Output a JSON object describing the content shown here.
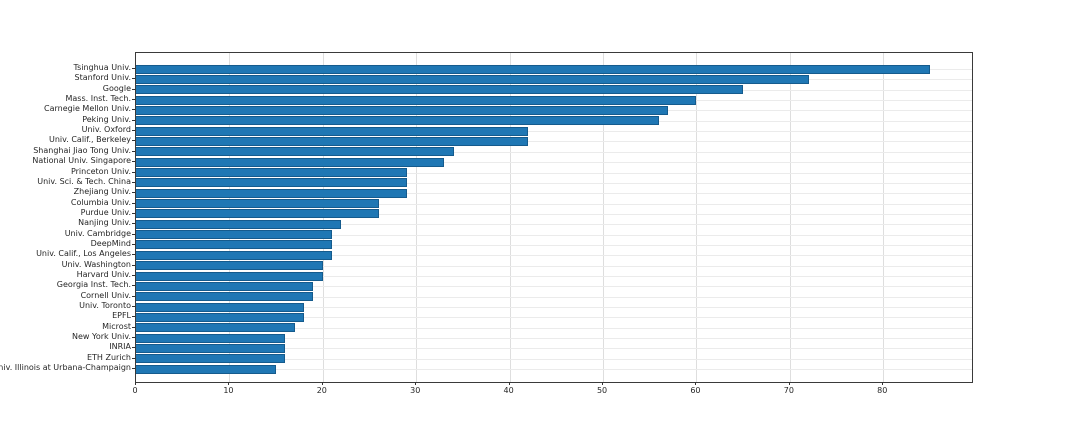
{
  "chart_data": {
    "type": "bar",
    "orientation": "horizontal",
    "title": "",
    "xlabel": "",
    "ylabel": "",
    "categories": [
      "Tsinghua Univ.",
      "Stanford Univ.",
      "Google",
      "Mass. Inst. Tech.",
      "Carnegie Mellon Univ.",
      "Peking Univ.",
      "Univ. Oxford",
      "Univ. Calif., Berkeley",
      "Shanghai Jiao Tong Univ.",
      "National Univ. Singapore",
      "Princeton Univ.",
      "Univ. Sci. & Tech. China",
      "Zhejiang Univ.",
      "Columbia Univ.",
      "Purdue Univ.",
      "Nanjing Univ.",
      "Univ. Cambridge",
      "DeepMind",
      "Univ. Calif., Los Angeles",
      "Univ. Washington",
      "Harvard Univ.",
      "Georgia Inst. Tech.",
      "Cornell Univ.",
      "Univ. Toronto",
      "EPFL",
      "Microst",
      "New York Univ.",
      "INRIA",
      "ETH Zurich",
      "Univ. Illinois at Urbana-Champaign"
    ],
    "values": [
      85,
      72,
      65,
      60,
      57,
      56,
      42,
      42,
      34,
      33,
      29,
      29,
      29,
      26,
      26,
      22,
      21,
      21,
      21,
      20,
      20,
      19,
      19,
      18,
      18,
      17,
      16,
      16,
      16,
      15
    ],
    "xticks": [
      0,
      10,
      20,
      30,
      40,
      50,
      60,
      70,
      80
    ],
    "xlim": [
      0,
      89.5
    ],
    "grid": "both",
    "legend": null,
    "bar_color": "#1f77b4",
    "bar_edge_color": "#0d466e",
    "grid_color_vertical": "#dedede",
    "grid_color_horizontal": "#ebebeb",
    "spine_color": "#3a3a3a",
    "tick_text_color": "#262626"
  }
}
